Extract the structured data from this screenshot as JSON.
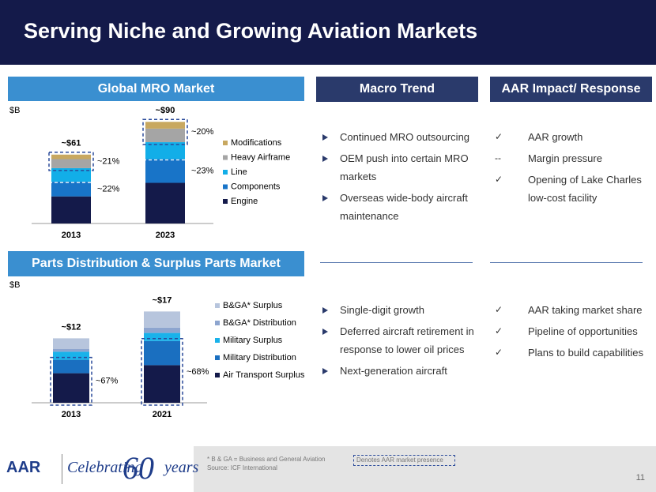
{
  "title": "Serving Niche and Growing Aviation Markets",
  "panels": {
    "mro": "Global MRO Market",
    "parts": "Parts Distribution & Surplus Parts Market",
    "macro": "Macro Trend",
    "impact": "AAR Impact/ Response"
  },
  "chart_data": [
    {
      "type": "bar",
      "stacked": true,
      "unit_label": "$B",
      "categories": [
        "2013",
        "2023"
      ],
      "series": [
        {
          "name": "Engine",
          "color": "#141a4a",
          "values": [
            24,
            36
          ]
        },
        {
          "name": "Components",
          "color": "#1874c8",
          "values": [
            13,
            21
          ]
        },
        {
          "name": "Line",
          "color": "#12aee8",
          "values": [
            12,
            15
          ]
        },
        {
          "name": "Heavy Airframe",
          "color": "#a5a5a5",
          "values": [
            8,
            12
          ]
        },
        {
          "name": "Modifications",
          "color": "#c8a860",
          "values": [
            4,
            6
          ]
        }
      ],
      "totals": [
        61,
        90
      ],
      "total_labels": [
        "~$61",
        "~$90"
      ],
      "annotations": [
        [
          "~21%",
          "~22%"
        ],
        [
          "~20%",
          "~23%"
        ]
      ]
    },
    {
      "type": "bar",
      "stacked": true,
      "unit_label": "$B",
      "categories": [
        "2013",
        "2021"
      ],
      "series": [
        {
          "name": "Air Transport Surplus",
          "color": "#141a4a",
          "values": [
            5.5,
            7
          ]
        },
        {
          "name": "Military Distribution",
          "color": "#1a6fc0",
          "values": [
            2.5,
            4.5
          ]
        },
        {
          "name": "Military Surplus",
          "color": "#19b2ea",
          "values": [
            1.5,
            1.5
          ]
        },
        {
          "name": "B&GA* Distribution",
          "color": "#8da5cf",
          "values": [
            0.5,
            1
          ]
        },
        {
          "name": "B&GA* Surplus",
          "color": "#b7c5dd",
          "values": [
            2,
            3
          ]
        }
      ],
      "totals": [
        12,
        17
      ],
      "total_labels": [
        "~$12",
        "~$17"
      ],
      "annotations": [
        [
          "~67%"
        ],
        [
          "~68%"
        ]
      ]
    }
  ],
  "macro_trend": {
    "mro": [
      "Continued MRO outsourcing",
      "OEM push into certain MRO markets",
      "Overseas wide-body aircraft maintenance"
    ],
    "parts": [
      "Single-digit growth",
      "Deferred aircraft retirement in response to lower oil prices",
      "Next-generation aircraft"
    ]
  },
  "aar_impact": {
    "mro": [
      {
        "marker": "✓",
        "text": "AAR growth"
      },
      {
        "marker": "--",
        "text": "Margin pressure"
      },
      {
        "marker": "✓",
        "text": "Opening of Lake Charles low-cost facility"
      }
    ],
    "parts": [
      {
        "marker": "✓",
        "text": "AAR taking market share"
      },
      {
        "marker": "✓",
        "text": "Pipeline of opportunities"
      },
      {
        "marker": "✓",
        "text": "Plans to build capabilities"
      }
    ]
  },
  "footer": {
    "notes": [
      "* B & GA = Business and General Aviation",
      "Source: ICF International"
    ],
    "legend_note": "Denotes AAR market presence",
    "page": "11",
    "logo": {
      "brand": "AAR",
      "tagline": "Celebrating",
      "number": "60",
      "suffix": "years"
    }
  }
}
